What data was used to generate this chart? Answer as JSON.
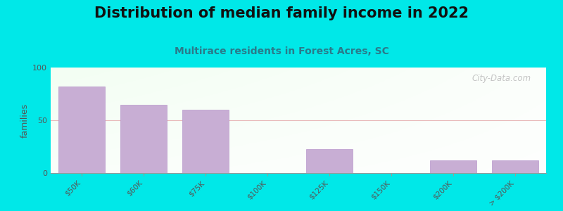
{
  "title": "Distribution of median family income in 2022",
  "subtitle": "Multirace residents in Forest Acres, SC",
  "categories": [
    "$50K",
    "$60K",
    "$75K",
    "$100K",
    "$125K",
    "$150K",
    "$200K",
    "> $200K"
  ],
  "values": [
    82,
    65,
    60,
    0,
    23,
    0,
    12,
    12
  ],
  "bar_color": "#c8aed4",
  "bar_edge_color": "#b898cc",
  "outer_bg": "#00e8e8",
  "ylabel": "families",
  "ylim": [
    0,
    100
  ],
  "yticks": [
    0,
    50,
    100
  ],
  "grid_color": "#e8b8b8",
  "title_fontsize": 15,
  "title_color": "#111111",
  "subtitle_fontsize": 10,
  "subtitle_color": "#2a7a8a",
  "watermark": "City-Data.com",
  "watermark_color": "#bbbbbb",
  "tick_label_color": "#555555",
  "ylabel_color": "#555555"
}
